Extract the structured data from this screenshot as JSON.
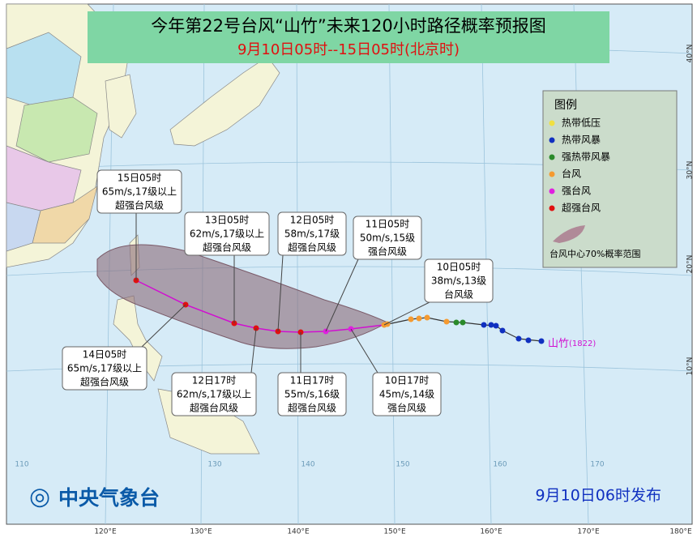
{
  "title": "今年第22号台风“山竹”未来120小时路径概率预报图",
  "subtitle": "9月10日05时--15日05时(北京时)",
  "legend": {
    "title": "图例",
    "items": [
      "热带低压",
      "热带风暴",
      "强热带风暴",
      "台风",
      "强台风",
      "超强台风"
    ],
    "cone_label": "台风中心70%概率范围"
  },
  "callouts": [
    {
      "lines": [
        "15日05时",
        "65m/s,17级以上",
        "超强台风级"
      ]
    },
    {
      "lines": [
        "13日05时",
        "62m/s,17级以上",
        "超强台风级"
      ]
    },
    {
      "lines": [
        "12日05时",
        "58m/s,17级",
        "超强台风级"
      ]
    },
    {
      "lines": [
        "11日05时",
        "50m/s,15级",
        "强台风级"
      ]
    },
    {
      "lines": [
        "10日05时",
        "38m/s,13级",
        "台风级"
      ]
    },
    {
      "lines": [
        "14日05时",
        "65m/s,17级以上",
        "超强台风级"
      ]
    },
    {
      "lines": [
        "12日17时",
        "62m/s,17级以上",
        "超强台风级"
      ]
    },
    {
      "lines": [
        "11日17时",
        "55m/s,16级",
        "超强台风级"
      ]
    },
    {
      "lines": [
        "10日17时",
        "45m/s,14级",
        "强台风级"
      ]
    }
  ],
  "storm_label": {
    "name": "山竹",
    "code": "(1822)"
  },
  "lon_labels": [
    "120°E",
    "130°E",
    "140°E",
    "150°E",
    "160°E",
    "170°E",
    "180°E"
  ],
  "lat_labels": [
    "40°N",
    "30°N",
    "20°N",
    "10°N"
  ],
  "grid_labels": [
    "110",
    "130",
    "140",
    "150",
    "160",
    "170"
  ],
  "footer": {
    "agency": "中央气象台",
    "issued": "9月10日06时发布"
  }
}
